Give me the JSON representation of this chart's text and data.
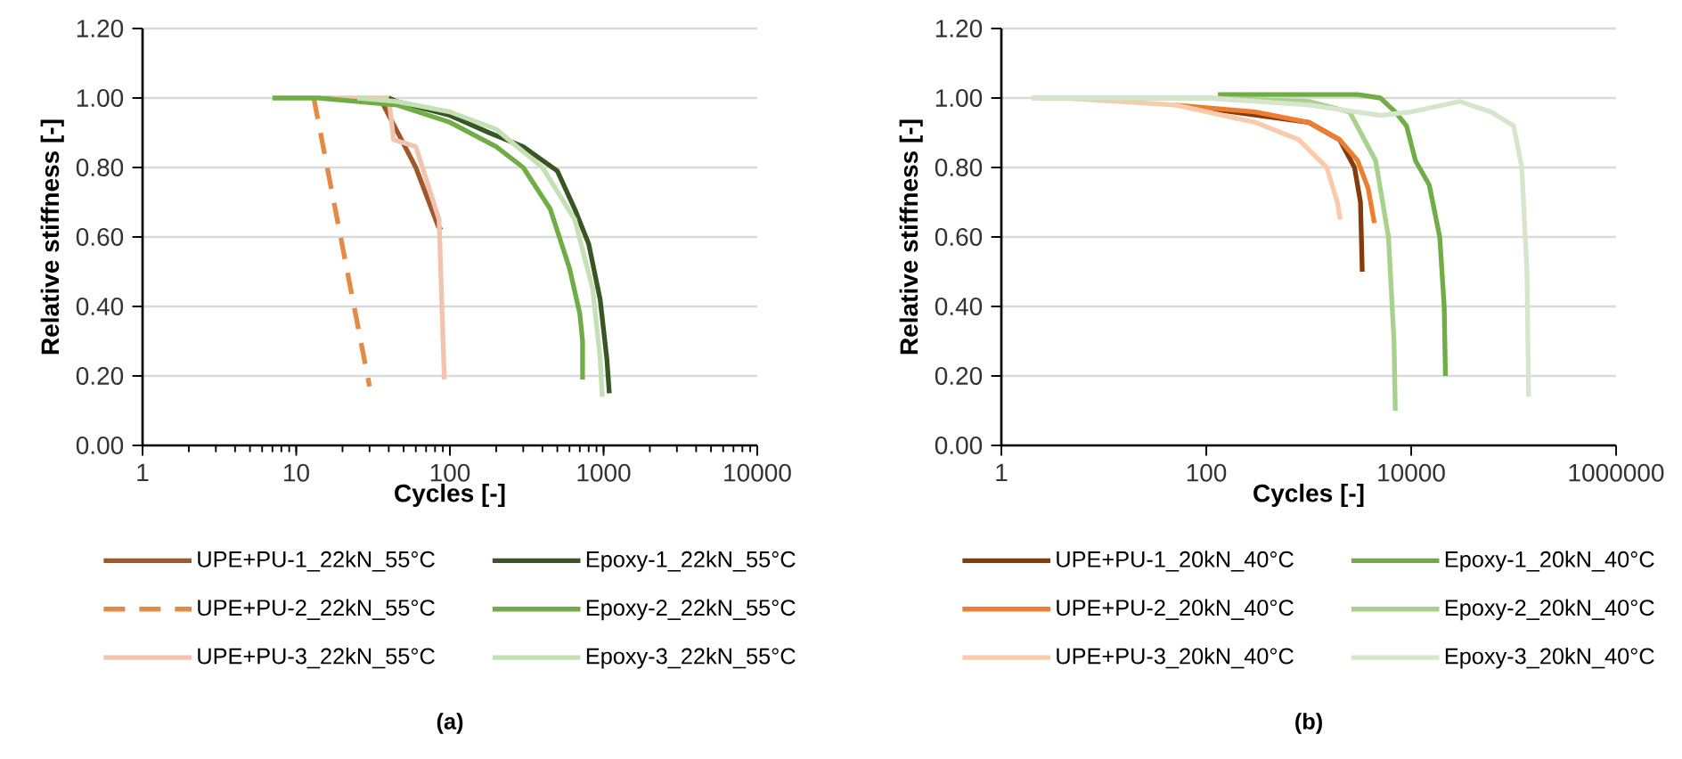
{
  "chart_data": [
    {
      "type": "line",
      "xlabel": "Cycles [-]",
      "ylabel": "Relative stiffness [-]",
      "annotations": [
        "(a)"
      ],
      "log": "x",
      "grid": "y",
      "legend": "bottom",
      "xlim": [
        1,
        10000
      ],
      "ylim": [
        0,
        1.2
      ],
      "xticks": [
        1,
        10,
        100,
        1000,
        10000
      ],
      "yticks": [
        {
          "value": 0,
          "label": "0.00"
        },
        {
          "value": 0.2,
          "label": "0.20"
        },
        {
          "value": 0.4,
          "label": "0.40"
        },
        {
          "value": 0.6,
          "label": "0.60"
        },
        {
          "value": 0.8,
          "label": "0.80"
        },
        {
          "value": 1.0,
          "label": "1.00"
        },
        {
          "value": 1.2,
          "label": "1.20"
        }
      ],
      "series": [
        {
          "name": "UPE+PU-1_22kN_55°C",
          "color": "#a0582a",
          "x": [
            35,
            60,
            84,
            88
          ],
          "values": [
            1.0,
            0.8,
            0.63,
            0.62
          ]
        },
        {
          "name": "UPE+PU-2_22kN_55°C",
          "color": "#e58a45",
          "line_style": "dashed",
          "x": [
            13,
            30
          ],
          "values": [
            1.0,
            0.17
          ]
        },
        {
          "name": "UPE+PU-3_22kN_55°C",
          "color": "#f2c4b0",
          "x": [
            15,
            40,
            43,
            60,
            85,
            92
          ],
          "values": [
            1.0,
            1.0,
            0.88,
            0.86,
            0.65,
            0.19
          ]
        },
        {
          "name": "Epoxy-1_22kN_55°C",
          "color": "#375623",
          "x": [
            40,
            45,
            100,
            180,
            300,
            500,
            650,
            800,
            950,
            1050,
            1090
          ],
          "values": [
            1.0,
            0.99,
            0.95,
            0.9,
            0.86,
            0.79,
            0.68,
            0.58,
            0.42,
            0.25,
            0.15
          ]
        },
        {
          "name": "Epoxy-2_22kN_55°C",
          "color": "#70ad47",
          "x": [
            7,
            14,
            45,
            100,
            200,
            300,
            450,
            600,
            700,
            730,
            730
          ],
          "values": [
            1.0,
            1.0,
            0.98,
            0.93,
            0.86,
            0.8,
            0.68,
            0.51,
            0.38,
            0.3,
            0.19
          ]
        },
        {
          "name": "Epoxy-3_22kN_55°C",
          "color": "#c5e0b4",
          "x": [
            25,
            45,
            100,
            200,
            400,
            650,
            850,
            950,
            980
          ],
          "values": [
            1.0,
            0.99,
            0.96,
            0.91,
            0.8,
            0.65,
            0.45,
            0.25,
            0.14
          ]
        }
      ]
    },
    {
      "type": "line",
      "xlabel": "Cycles [-]",
      "ylabel": "Relative stiffness [-]",
      "annotations": [
        "(b)"
      ],
      "log": "x",
      "grid": "y",
      "legend": "bottom",
      "xlim": [
        1,
        1000000
      ],
      "ylim": [
        0,
        1.2
      ],
      "xticks": [
        1,
        100,
        10000,
        1000000
      ],
      "yticks": [
        {
          "value": 0,
          "label": "0.00"
        },
        {
          "value": 0.2,
          "label": "0.20"
        },
        {
          "value": 0.4,
          "label": "0.40"
        },
        {
          "value": 0.6,
          "label": "0.60"
        },
        {
          "value": 0.8,
          "label": "0.80"
        },
        {
          "value": 1.0,
          "label": "1.00"
        },
        {
          "value": 1.2,
          "label": "1.20"
        }
      ],
      "series": [
        {
          "name": "UPE+PU-1_20kN_40°C",
          "color": "#843c0c",
          "x": [
            100,
            1000,
            2000,
            2800,
            3200,
            3330
          ],
          "values": [
            0.97,
            0.93,
            0.88,
            0.8,
            0.7,
            0.5
          ]
        },
        {
          "name": "UPE+PU-2_20kN_40°C",
          "color": "#ed7d31",
          "x": [
            50,
            300,
            1000,
            2000,
            3000,
            3800,
            4370
          ],
          "values": [
            0.98,
            0.96,
            0.93,
            0.88,
            0.82,
            0.74,
            0.64
          ]
        },
        {
          "name": "UPE+PU-3_20kN_40°C",
          "color": "#f8cbad",
          "x": [
            4,
            50,
            300,
            800,
            1500,
            1900,
            2030
          ],
          "values": [
            1.0,
            0.98,
            0.93,
            0.88,
            0.8,
            0.7,
            0.65
          ]
        },
        {
          "name": "Epoxy-1_20kN_40°C",
          "color": "#70ad47",
          "x": [
            130,
            1000,
            3000,
            5000,
            7000,
            9000,
            11000,
            15000,
            19000,
            21000,
            21600
          ],
          "values": [
            1.01,
            1.01,
            1.01,
            1.0,
            0.96,
            0.92,
            0.82,
            0.75,
            0.6,
            0.4,
            0.2
          ]
        },
        {
          "name": "Epoxy-2_20kN_40°C",
          "color": "#a9d18e",
          "x": [
            2,
            100,
            1000,
            2500,
            4500,
            6000,
            6800,
            7000
          ],
          "values": [
            1.0,
            1.0,
            0.99,
            0.96,
            0.82,
            0.6,
            0.3,
            0.1
          ]
        },
        {
          "name": "Epoxy-3_20kN_40°C",
          "color": "#d6e5cc",
          "x": [
            2,
            100,
            1000,
            5000,
            10000,
            30000,
            60000,
            100000,
            120000,
            135000,
            140000
          ],
          "values": [
            1.0,
            1.0,
            0.98,
            0.95,
            0.96,
            0.99,
            0.96,
            0.92,
            0.8,
            0.5,
            0.14
          ]
        }
      ]
    }
  ]
}
